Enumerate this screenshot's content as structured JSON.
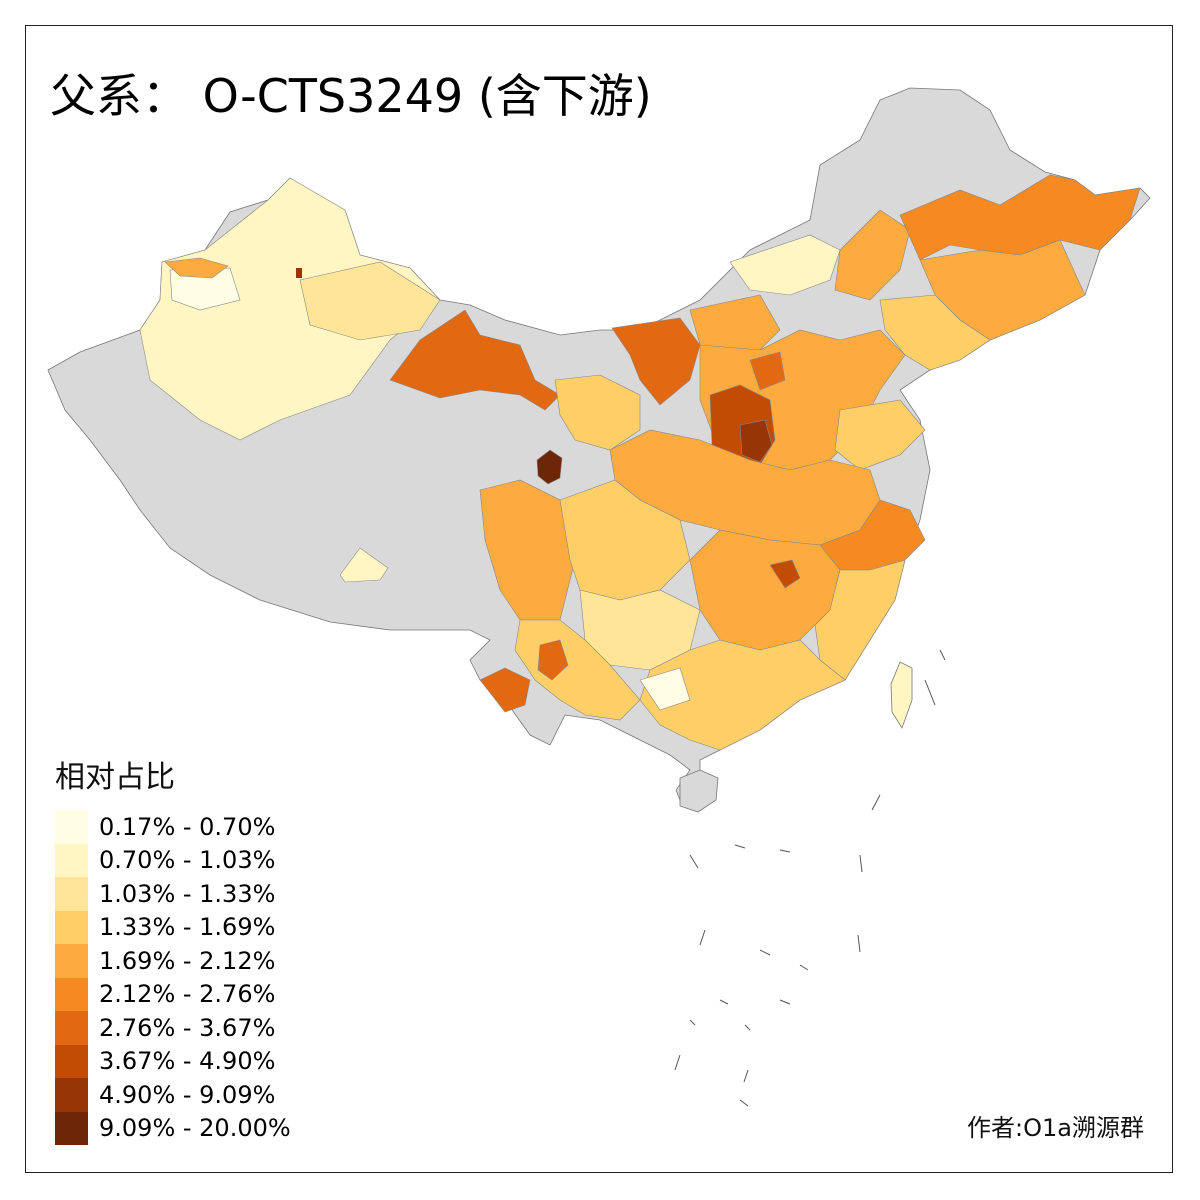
{
  "title": "父系： O-CTS3249 (含下游)",
  "legend": {
    "title": "相对占比",
    "classes": [
      {
        "label": "0.17% - 0.70%",
        "color": "#FFFEE5"
      },
      {
        "label": "0.70% - 1.03%",
        "color": "#FFF6C4"
      },
      {
        "label": "1.03% - 1.33%",
        "color": "#FEE597"
      },
      {
        "label": "1.33% - 1.69%",
        "color": "#FECF66"
      },
      {
        "label": "1.69% - 2.12%",
        "color": "#FDAB3F"
      },
      {
        "label": "2.12% - 2.76%",
        "color": "#F68A22"
      },
      {
        "label": "2.76% - 3.67%",
        "color": "#E26912"
      },
      {
        "label": "3.67% - 4.90%",
        "color": "#C24C04"
      },
      {
        "label": "4.90% - 9.09%",
        "color": "#973506"
      },
      {
        "label": "9.09% - 20.00%",
        "color": "#6D2707"
      }
    ],
    "no_data_color": "#D9D9D9"
  },
  "credit": "作者:O1a溯源群"
}
